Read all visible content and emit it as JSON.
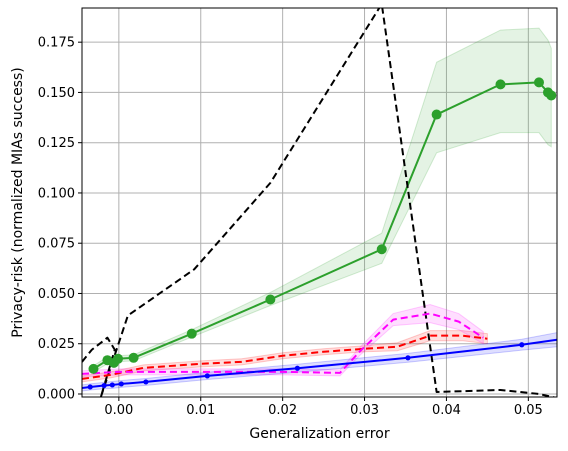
{
  "chart_data": {
    "type": "line",
    "title": "",
    "xlabel": "Generalization error",
    "ylabel": "Privacy-risk (normalized MIAs success)",
    "xlim": [
      -0.0045,
      0.0535
    ],
    "ylim": [
      -0.0015,
      0.192
    ],
    "xticks": [
      0.0,
      0.01,
      0.02,
      0.03,
      0.04,
      0.05
    ],
    "xtick_labels": [
      "0.00",
      "0.01",
      "0.02",
      "0.03",
      "0.04",
      "0.05"
    ],
    "yticks": [
      0.0,
      0.025,
      0.05,
      0.075,
      0.1,
      0.125,
      0.15,
      0.175
    ],
    "ytick_labels": [
      "0.000",
      "0.025",
      "0.050",
      "0.075",
      "0.100",
      "0.125",
      "0.150",
      "0.175"
    ],
    "grid": true,
    "series": [
      {
        "color": "#2ca02c",
        "style": "solid",
        "marker": "large-circle",
        "x": [
          -0.0031,
          -0.0014,
          -0.0006,
          -0.0001,
          0.0018,
          0.0089,
          0.0185,
          0.0321,
          0.0388,
          0.0466,
          0.0513,
          0.0524,
          0.0528
        ],
        "y": [
          0.0125,
          0.0168,
          0.0155,
          0.0175,
          0.018,
          0.03,
          0.047,
          0.072,
          0.139,
          0.154,
          0.155,
          0.15,
          0.1485
        ],
        "band_upper": [
          0.014,
          0.0185,
          0.017,
          0.019,
          0.0195,
          0.032,
          0.0505,
          0.08,
          0.165,
          0.181,
          0.182,
          0.176,
          0.172
        ],
        "band_lower": [
          0.011,
          0.015,
          0.0142,
          0.016,
          0.0165,
          0.0283,
          0.044,
          0.065,
          0.12,
          0.13,
          0.13,
          0.124,
          0.123
        ]
      },
      {
        "color": "#000000",
        "style": "dashed",
        "marker": "none",
        "x": [
          -0.0045,
          -0.0033,
          -0.0014,
          -0.0005,
          -0.0022,
          0.0011,
          0.0092,
          0.0185,
          0.0321,
          0.0388,
          0.0466,
          0.0513,
          0.0535
        ],
        "y": [
          0.016,
          0.022,
          0.028,
          0.022,
          -0.0015,
          0.039,
          0.062,
          0.105,
          0.194,
          0.001,
          0.002,
          0.0,
          -0.002
        ]
      },
      {
        "color": "#ff0000",
        "style": "dashed",
        "marker": "none",
        "x": [
          -0.0045,
          -0.001,
          0.003,
          0.01,
          0.015,
          0.02,
          0.025,
          0.03,
          0.034,
          0.038,
          0.042,
          0.045
        ],
        "y": [
          0.0075,
          0.0095,
          0.013,
          0.015,
          0.016,
          0.019,
          0.021,
          0.0225,
          0.0235,
          0.029,
          0.029,
          0.0275
        ],
        "band_upper": [
          0.009,
          0.011,
          0.0145,
          0.0165,
          0.0175,
          0.0205,
          0.0225,
          0.024,
          0.0255,
          0.0315,
          0.0315,
          0.03
        ],
        "band_lower": [
          0.006,
          0.008,
          0.0115,
          0.0135,
          0.0145,
          0.0175,
          0.0195,
          0.021,
          0.0215,
          0.0265,
          0.0265,
          0.025
        ]
      },
      {
        "color": "#ff00ff",
        "style": "dashed",
        "marker": "none",
        "x": [
          -0.0045,
          0.0,
          0.01,
          0.02,
          0.027,
          0.0295,
          0.0335,
          0.038,
          0.0415,
          0.0445
        ],
        "y": [
          0.01,
          0.011,
          0.011,
          0.011,
          0.0105,
          0.0215,
          0.037,
          0.04,
          0.036,
          0.028
        ],
        "band_upper": [
          0.0115,
          0.0125,
          0.0125,
          0.0125,
          0.012,
          0.0235,
          0.04,
          0.0445,
          0.04,
          0.031
        ],
        "band_lower": [
          0.0085,
          0.0095,
          0.0095,
          0.0095,
          0.009,
          0.0195,
          0.034,
          0.0355,
          0.032,
          0.025
        ]
      },
      {
        "color": "#0000ff",
        "style": "solid",
        "marker": "small-circle",
        "x": [
          -0.0045,
          -0.0035,
          -0.0018,
          -0.0008,
          0.0003,
          0.0033,
          0.0108,
          0.0218,
          0.0353,
          0.0492,
          0.0535
        ],
        "y": [
          0.003,
          0.0035,
          0.0042,
          0.0045,
          0.005,
          0.006,
          0.009,
          0.0128,
          0.018,
          0.0245,
          0.027
        ],
        "band_upper": [
          0.0045,
          0.005,
          0.0058,
          0.0062,
          0.0067,
          0.0077,
          0.0108,
          0.0148,
          0.0202,
          0.0272,
          0.0305
        ],
        "band_lower": [
          0.0015,
          0.002,
          0.0026,
          0.0028,
          0.0033,
          0.0043,
          0.0072,
          0.0108,
          0.0158,
          0.0218,
          0.0235
        ],
        "markers_at": [
          -0.0035,
          -0.0018,
          -0.0008,
          0.0003,
          0.0033,
          0.0108,
          0.0218,
          0.0353,
          0.0492
        ]
      }
    ]
  }
}
